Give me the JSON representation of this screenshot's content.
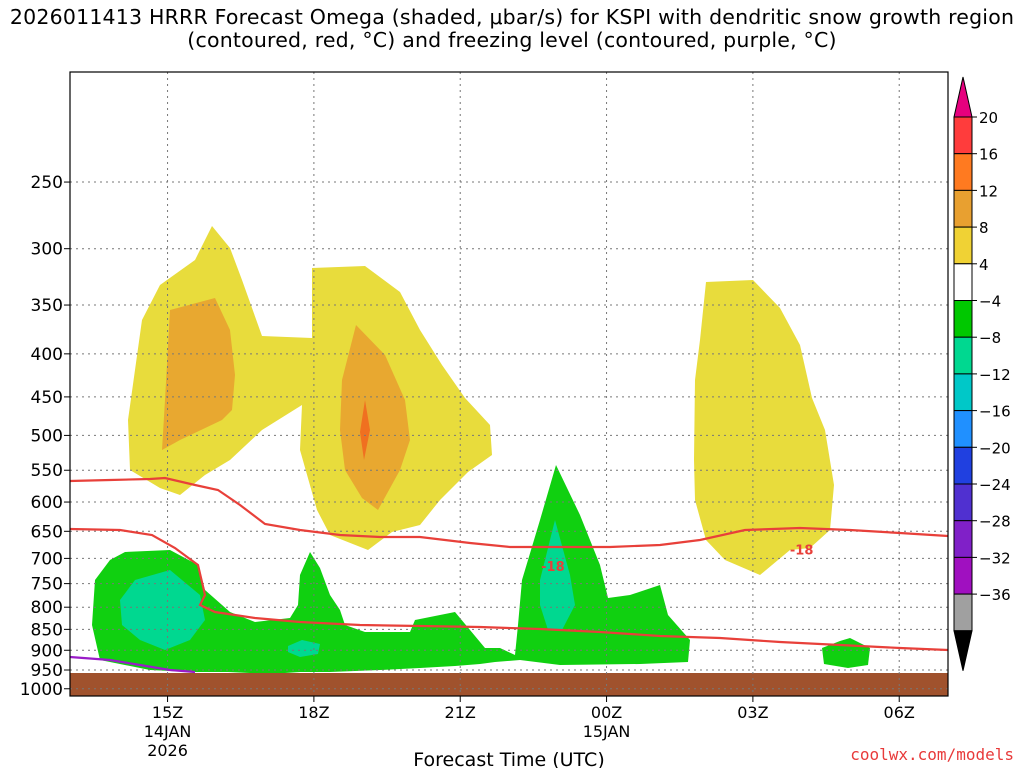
{
  "chart_data": {
    "type": "contour",
    "title": "2026011413 HRRR Forecast Omega (shaded, μbar/s) for KSPI with dendritic snow growth region (contoured, red, °C) and freezing level (contoured, purple, °C)",
    "xlabel": "Forecast Time (UTC)",
    "ylabel": "",
    "x_ticks": [
      {
        "label": "15Z",
        "sub": [
          "14JAN",
          "2026"
        ],
        "hour": 2
      },
      {
        "label": "18Z",
        "sub": [],
        "hour": 5
      },
      {
        "label": "21Z",
        "sub": [],
        "hour": 8
      },
      {
        "label": "00Z",
        "sub": [
          "15JAN"
        ],
        "hour": 11
      },
      {
        "label": "03Z",
        "sub": [],
        "hour": 14
      },
      {
        "label": "06Z",
        "sub": [],
        "hour": 17
      }
    ],
    "x_range_hours": [
      0.0,
      18.0
    ],
    "y_ticks": [
      250,
      300,
      350,
      400,
      450,
      500,
      550,
      600,
      650,
      700,
      750,
      800,
      850,
      900,
      950,
      1000
    ],
    "y_range_hpa": [
      185,
      1020
    ],
    "colorbar": {
      "labels": [
        "20",
        "16",
        "12",
        "8",
        "4",
        "−4",
        "−8",
        "−12",
        "−16",
        "−20",
        "−24",
        "−28",
        "−32",
        "−36"
      ],
      "colors": [
        "#ff3c3c",
        "#ff7a20",
        "#e8a030",
        "#f0d234",
        "#ffffff",
        "#00c800",
        "#00d890",
        "#00c8c8",
        "#2090ff",
        "#2040e0",
        "#5030d0",
        "#8020c8",
        "#a010c0",
        "#a0a0a0"
      ],
      "top_arrow_color": "#e6007e",
      "bottom_arrow_color": "#000000"
    },
    "contour_labels": [
      {
        "text": "-18",
        "hour": 9.9,
        "hpa": 715
      },
      {
        "text": "-18",
        "hour": 15.0,
        "hpa": 683
      }
    ],
    "features": {
      "dgz_lines": "red (#e8403a): -12°C near 600→700 hPa, -18°C near 680→950 hPa",
      "freezing_level": "purple (#9a1cc8) near 950→990 hPa, ~13Z-16Z",
      "terrain": "brown (#a0522d) below ~980 hPa"
    }
  },
  "credit": "coolwx.com/models"
}
